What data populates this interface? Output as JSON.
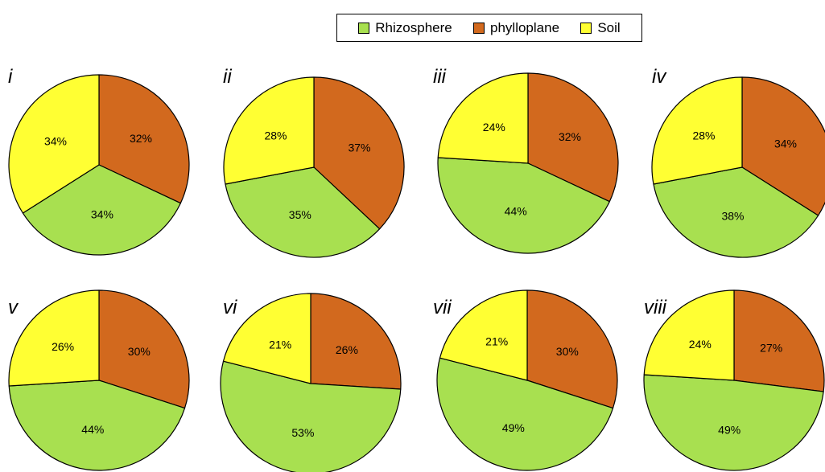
{
  "legend": {
    "items": [
      {
        "label": "Rhizosphere",
        "color": "#a8e050"
      },
      {
        "label": "phylloplane",
        "color": "#d2691e"
      },
      {
        "label": "Soil",
        "color": "#ffff33"
      }
    ]
  },
  "chart_data": [
    {
      "type": "pie",
      "title": "i",
      "categories": [
        "phylloplane",
        "Rhizosphere",
        "Soil"
      ],
      "values": [
        32,
        34,
        34
      ]
    },
    {
      "type": "pie",
      "title": "ii",
      "categories": [
        "phylloplane",
        "Rhizosphere",
        "Soil"
      ],
      "values": [
        37,
        35,
        28
      ]
    },
    {
      "type": "pie",
      "title": "iii",
      "categories": [
        "phylloplane",
        "Rhizosphere",
        "Soil"
      ],
      "values": [
        32,
        44,
        24
      ]
    },
    {
      "type": "pie",
      "title": "iv",
      "categories": [
        "phylloplane",
        "Rhizosphere",
        "Soil"
      ],
      "values": [
        34,
        38,
        28
      ]
    },
    {
      "type": "pie",
      "title": "v",
      "categories": [
        "phylloplane",
        "Rhizosphere",
        "Soil"
      ],
      "values": [
        30,
        44,
        26
      ]
    },
    {
      "type": "pie",
      "title": "vi",
      "categories": [
        "phylloplane",
        "Rhizosphere",
        "Soil"
      ],
      "values": [
        26,
        53,
        21
      ]
    },
    {
      "type": "pie",
      "title": "vii",
      "categories": [
        "phylloplane",
        "Rhizosphere",
        "Soil"
      ],
      "values": [
        30,
        49,
        21
      ]
    },
    {
      "type": "pie",
      "title": "viii",
      "categories": [
        "phylloplane",
        "Rhizosphere",
        "Soil"
      ],
      "values": [
        27,
        49,
        24
      ]
    }
  ]
}
